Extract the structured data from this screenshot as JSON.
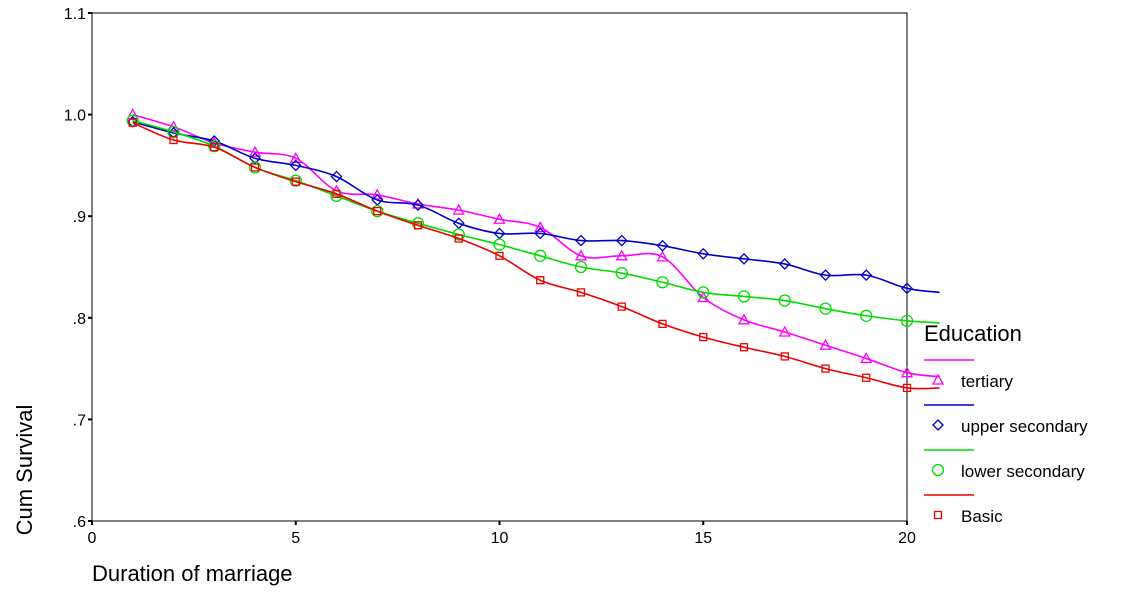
{
  "chart_data": {
    "type": "line",
    "xlabel": "Duration of marriage",
    "ylabel": "Cum Survival",
    "xlim": [
      0,
      20
    ],
    "ylim": [
      0.6,
      1.1
    ],
    "x_ticks": [
      0,
      5,
      10,
      15,
      20
    ],
    "x_tick_labels": [
      "0",
      "5",
      "10",
      "15",
      "20"
    ],
    "y_ticks": [
      0.6,
      0.7,
      0.8,
      0.9,
      1.0,
      1.1
    ],
    "y_tick_labels": [
      ".6",
      ".7",
      ".8",
      ".9",
      "1.0",
      "1.1"
    ],
    "grid": false,
    "legend": {
      "title": "Education",
      "placement": "right"
    },
    "series": [
      {
        "name": "tertiary",
        "color": "#ff00ff",
        "marker": "triangle",
        "x": [
          1,
          2,
          3,
          4,
          5,
          6,
          7,
          8,
          9,
          10,
          11,
          12,
          13,
          14,
          15,
          16,
          17,
          18,
          19,
          20,
          20.8
        ],
        "y": [
          1.0,
          0.988,
          0.972,
          0.963,
          0.957,
          0.925,
          0.921,
          0.912,
          0.906,
          0.897,
          0.889,
          0.861,
          0.861,
          0.86,
          0.82,
          0.798,
          0.786,
          0.773,
          0.76,
          0.746,
          0.742
        ]
      },
      {
        "name": "upper secondary",
        "color": "#0000cc",
        "marker": "diamond",
        "x": [
          1,
          2,
          3,
          4,
          5,
          6,
          7,
          8,
          9,
          10,
          11,
          12,
          13,
          14,
          15,
          16,
          17,
          18,
          19,
          20,
          20.8
        ],
        "y": [
          0.993,
          0.982,
          0.974,
          0.957,
          0.95,
          0.939,
          0.916,
          0.911,
          0.893,
          0.883,
          0.883,
          0.876,
          0.876,
          0.871,
          0.863,
          0.858,
          0.853,
          0.842,
          0.842,
          0.829,
          0.825
        ]
      },
      {
        "name": "lower secondary",
        "color": "#00dd00",
        "marker": "circle",
        "x": [
          1,
          2,
          3,
          4,
          5,
          6,
          7,
          8,
          9,
          10,
          11,
          12,
          13,
          14,
          15,
          16,
          17,
          18,
          19,
          20,
          20.8
        ],
        "y": [
          0.994,
          0.983,
          0.969,
          0.948,
          0.935,
          0.92,
          0.905,
          0.893,
          0.882,
          0.872,
          0.861,
          0.85,
          0.844,
          0.835,
          0.825,
          0.821,
          0.817,
          0.809,
          0.802,
          0.797,
          0.795
        ]
      },
      {
        "name": "Basic",
        "color": "#ee0000",
        "marker": "square",
        "x": [
          1,
          2,
          3,
          4,
          5,
          6,
          7,
          8,
          9,
          10,
          11,
          12,
          13,
          14,
          15,
          16,
          17,
          18,
          19,
          20,
          20.8
        ],
        "y": [
          0.992,
          0.975,
          0.968,
          0.948,
          0.934,
          0.922,
          0.905,
          0.891,
          0.878,
          0.861,
          0.837,
          0.825,
          0.811,
          0.794,
          0.781,
          0.771,
          0.762,
          0.75,
          0.741,
          0.731,
          0.731
        ]
      }
    ]
  }
}
